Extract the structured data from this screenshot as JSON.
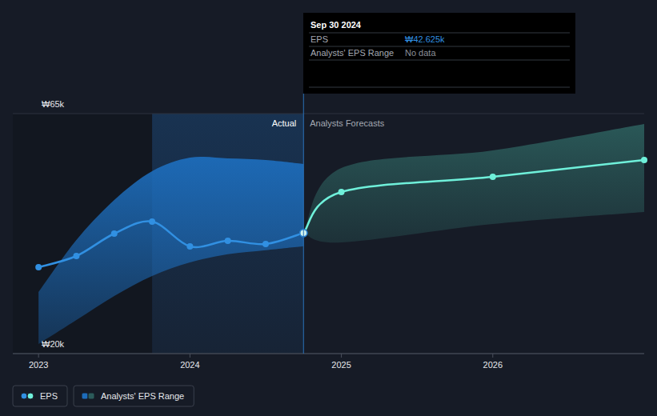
{
  "chart_data": {
    "type": "line",
    "x": [
      2023.0,
      2023.25,
      2023.5,
      2023.75,
      2024.0,
      2024.25,
      2024.5,
      2024.75,
      2025.0,
      2026.0,
      2027.0
    ],
    "xlim": [
      2022.83,
      2027.0
    ],
    "xticks": [
      2023,
      2024,
      2025,
      2026
    ],
    "ylim": [
      20,
      65
    ],
    "yticks": [
      {
        "value": 20,
        "label": "₩20k"
      },
      {
        "value": 65,
        "label": "₩65k"
      }
    ],
    "grid": true,
    "legend": "bottom-left",
    "series": [
      {
        "name": "EPS",
        "type": "line",
        "color": "#3190e2",
        "marker": "circle",
        "line_style": "solid",
        "values": [
          36.2,
          38.3,
          42.5,
          44.75,
          40.1,
          41.15,
          40.55,
          42.625,
          null,
          null,
          null
        ]
      },
      {
        "name": "EPS",
        "type": "line",
        "color": "#6ff0da",
        "marker": "circle",
        "line_style": "solid",
        "values": [
          null,
          null,
          null,
          null,
          null,
          null,
          null,
          42.625,
          50.3,
          53.15,
          56.3
        ]
      },
      {
        "name": "Analysts' EPS Range",
        "type": "band",
        "color": "#1d6cba",
        "low": [
          21.8,
          26.3,
          30.8,
          34.55,
          37.1,
          38.65,
          39.4,
          40.15,
          null,
          null,
          null
        ],
        "high": [
          31.55,
          41.3,
          48.8,
          54.2,
          56.75,
          56.6,
          56.3,
          55.55,
          null,
          null,
          null
        ]
      },
      {
        "name": "Analysts' EPS Range",
        "type": "band",
        "color": "#2b5b5a",
        "low": [
          null,
          null,
          null,
          null,
          null,
          null,
          null,
          42.625,
          40.85,
          44.3,
          46.55
        ],
        "high": [
          null,
          null,
          null,
          null,
          null,
          null,
          null,
          42.625,
          54.8,
          58.1,
          63.05
        ]
      }
    ],
    "annotations": {
      "actual": "Actual",
      "forecast": "Analysts Forecasts",
      "tooltip": {
        "date": "Sep 30 2024",
        "rows": [
          {
            "label": "EPS",
            "value": "₩42.625k"
          },
          {
            "label": "Analysts' EPS Range",
            "value": "No data"
          }
        ]
      }
    }
  }
}
